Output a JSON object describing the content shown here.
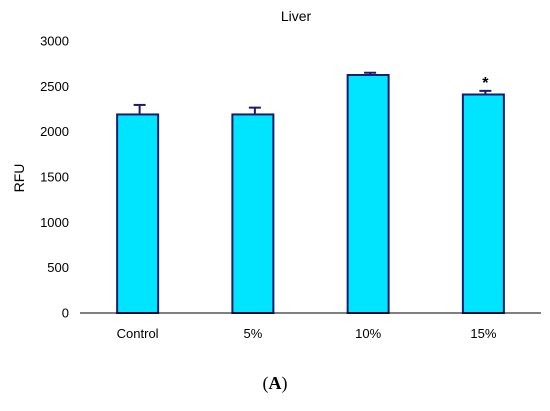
{
  "chart_data": {
    "type": "bar",
    "title": "Liver",
    "xlabel": "",
    "ylabel": "RFU",
    "categories": [
      "Control",
      "5%",
      "10%",
      "15%"
    ],
    "values": [
      2190,
      2190,
      2625,
      2410
    ],
    "error": [
      105,
      75,
      25,
      40
    ],
    "annotations": [
      "",
      "",
      "",
      "*"
    ],
    "ylim": [
      0,
      3000
    ],
    "yticks": [
      "0",
      "500",
      "1000",
      "1500",
      "2000",
      "2500",
      "3000"
    ],
    "grid": false,
    "legend": "none",
    "bar_color": "#00E5FF",
    "bar_edge_color": "#1A1A6E"
  },
  "panel_label": {
    "open": "(",
    "letter": "A",
    "close": ")"
  }
}
